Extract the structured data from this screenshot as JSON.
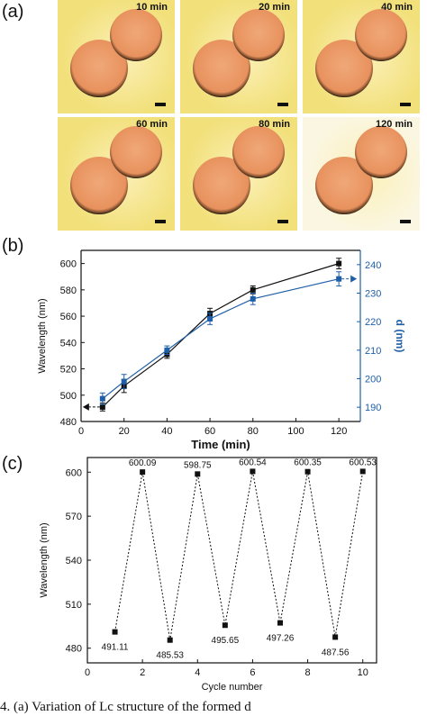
{
  "panels": {
    "a": "(a)",
    "b": "(b)",
    "c": "(c)"
  },
  "micrographs": [
    {
      "label": "10 min"
    },
    {
      "label": "20 min"
    },
    {
      "label": "40 min"
    },
    {
      "label": "60 min"
    },
    {
      "label": "80 min"
    },
    {
      "label": "120 min"
    }
  ],
  "colors": {
    "background_warm": "#f2e07a",
    "background_cool": "#fbf6e2",
    "droplet_fill": "#e8925e",
    "droplet_rim": "#1c1710",
    "series_black": "#111111",
    "series_blue": "#1f5fa8"
  },
  "chart_data": [
    {
      "type": "line",
      "panel": "(b)",
      "xlabel": "Time (min)",
      "ylabel": "Wavelength (nm)",
      "y2label": "d (nm)",
      "xlim": [
        0,
        130
      ],
      "ylim": [
        480,
        610
      ],
      "y2lim": [
        185,
        245
      ],
      "xticks": [
        0,
        20,
        40,
        60,
        80,
        100,
        120
      ],
      "yticks": [
        480,
        500,
        520,
        540,
        560,
        580,
        600
      ],
      "y2ticks": [
        190,
        200,
        210,
        220,
        230,
        240
      ],
      "series": [
        {
          "axis": "left",
          "color": "#111111",
          "marker": "square",
          "x": [
            10,
            20,
            40,
            60,
            80,
            120
          ],
          "y": [
            491,
            507,
            531,
            562,
            580,
            600
          ],
          "err": [
            3,
            5,
            3,
            4,
            3,
            4
          ]
        },
        {
          "axis": "right",
          "color": "#1f5fa8",
          "marker": "square",
          "x": [
            10,
            20,
            40,
            60,
            80,
            120
          ],
          "y": [
            193,
            199,
            210,
            221,
            228,
            235
          ],
          "err": [
            2,
            2.5,
            1.5,
            2,
            2,
            2.5
          ]
        }
      ]
    },
    {
      "type": "line",
      "panel": "(c)",
      "xlabel": "Cycle number",
      "ylabel": "Wavelength (nm)",
      "xlim": [
        0,
        10.5
      ],
      "ylim": [
        470,
        610
      ],
      "xticks": [
        0,
        2,
        4,
        6,
        8,
        10
      ],
      "yticks": [
        480,
        510,
        540,
        570,
        600
      ],
      "x": [
        1,
        2,
        3,
        4,
        5,
        6,
        7,
        8,
        9,
        10
      ],
      "y": [
        491.11,
        600.09,
        485.53,
        598.75,
        495.65,
        600.54,
        497.26,
        600.35,
        487.56,
        600.53
      ],
      "labels": [
        "491.11",
        "600.09",
        "485.53",
        "598.75",
        "495.65",
        "600.54",
        "497.26",
        "600.35",
        "487.56",
        "600.53"
      ]
    }
  ],
  "bottom_text": "4. (a) Variation of Lc structure of the formed d"
}
